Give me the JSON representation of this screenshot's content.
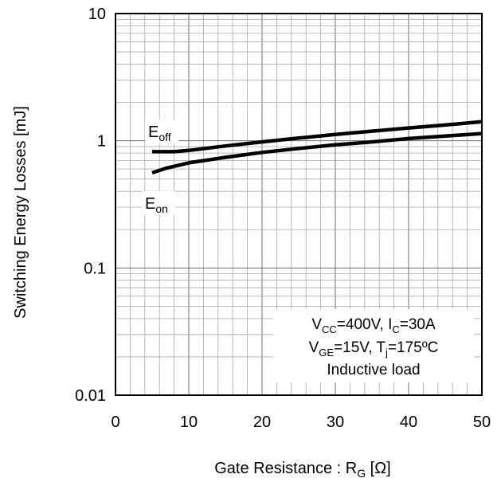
{
  "chart_data": {
    "type": "line",
    "title": "",
    "xlabel": "Gate Resistance : R",
    "xlabel_sub": "G",
    "xlabel_unit": " [Ω]",
    "ylabel": "Switching Energy Losses [mJ]",
    "xlim": [
      0,
      50
    ],
    "ylim": [
      0.01,
      10
    ],
    "yscale": "log",
    "grid": true,
    "xticks": [
      "0",
      "10",
      "20",
      "30",
      "40",
      "50"
    ],
    "yticks": [
      "0.01",
      "0.1",
      "1",
      "10"
    ],
    "series": [
      {
        "name": "E",
        "name_sub": "off",
        "x": [
          5,
          8,
          10,
          15,
          20,
          25,
          30,
          35,
          40,
          45,
          50
        ],
        "values": [
          0.82,
          0.82,
          0.84,
          0.91,
          0.98,
          1.05,
          1.12,
          1.19,
          1.26,
          1.33,
          1.41
        ]
      },
      {
        "name": "E",
        "name_sub": "on",
        "x": [
          5,
          7,
          10,
          15,
          20,
          25,
          30,
          35,
          40,
          45,
          50
        ],
        "values": [
          0.56,
          0.61,
          0.67,
          0.74,
          0.81,
          0.87,
          0.93,
          0.98,
          1.04,
          1.09,
          1.14
        ]
      }
    ],
    "annotation": {
      "line1": {
        "a": "V",
        "a_sub": "CC",
        "b": "=400V, I",
        "b_sub": "C",
        "c": "=30A"
      },
      "line2": {
        "a": "V",
        "a_sub": "GE",
        "b": "=15V, T",
        "b_sub": "j",
        "c": "=175ºC"
      },
      "line3": "Inductive load"
    }
  }
}
